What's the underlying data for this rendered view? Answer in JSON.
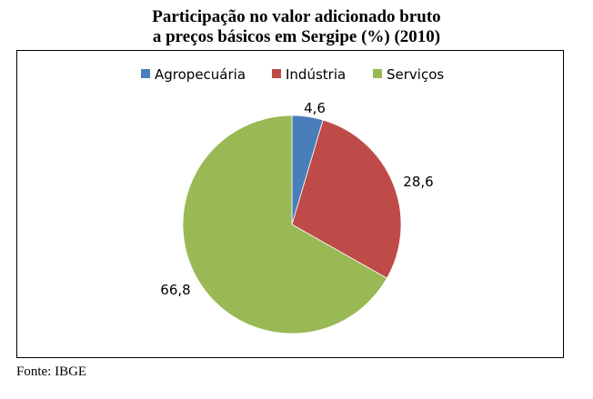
{
  "chart_data": {
    "type": "pie",
    "title_line1": "Participação no valor adicionado bruto",
    "title_line2": "a preços básicos em Sergipe (%) (2010)",
    "categories": [
      "Agropecuária",
      "Indústria",
      "Serviços"
    ],
    "values": [
      4.6,
      28.6,
      66.8
    ],
    "data_labels": [
      "4,6",
      "28,6",
      "66,8"
    ],
    "colors": [
      "#4a7ebb",
      "#be4b48",
      "#98b954"
    ],
    "legend_position": "top",
    "source": "Fonte: IBGE"
  }
}
